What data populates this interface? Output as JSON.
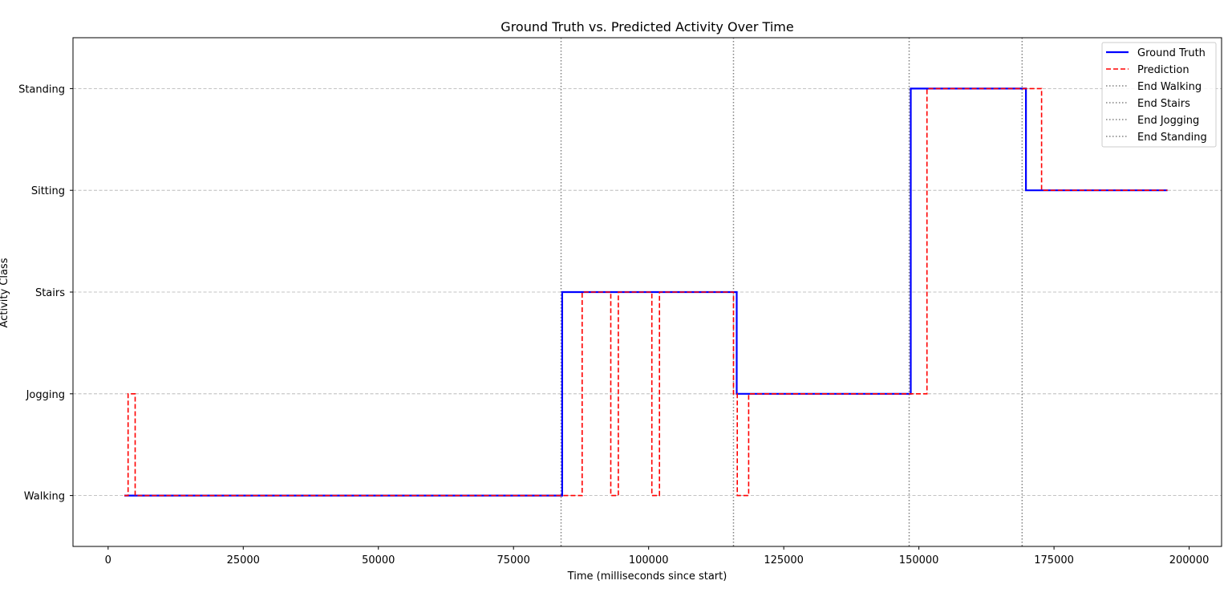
{
  "chart_data": {
    "type": "line",
    "title": "Ground Truth vs. Predicted Activity Over Time",
    "xlabel": "Time (milliseconds since start)",
    "ylabel": "Activity Class",
    "xlim": [
      -6500,
      206000
    ],
    "ylim": [
      -0.5,
      4.5
    ],
    "x_ticks": [
      0,
      25000,
      50000,
      75000,
      100000,
      125000,
      150000,
      175000,
      200000
    ],
    "x_tick_labels": [
      "0",
      "25000",
      "50000",
      "75000",
      "100000",
      "125000",
      "150000",
      "175000",
      "200000"
    ],
    "categories": [
      "Walking",
      "Jogging",
      "Stairs",
      "Sitting",
      "Standing"
    ],
    "grid": "y dashed",
    "legend_position": "top-right",
    "series": [
      {
        "name": "Ground Truth",
        "color": "#0000ff",
        "style": "solid",
        "points": [
          [
            3000,
            0
          ],
          [
            84000,
            0
          ],
          [
            84000,
            2
          ],
          [
            116300,
            2
          ],
          [
            116300,
            1
          ],
          [
            148500,
            1
          ],
          [
            148500,
            4
          ],
          [
            169800,
            4
          ],
          [
            169800,
            3
          ],
          [
            196000,
            3
          ]
        ]
      },
      {
        "name": "Prediction",
        "color": "#ff0000",
        "style": "dashed",
        "points": [
          [
            3000,
            0
          ],
          [
            3700,
            0
          ],
          [
            3700,
            1
          ],
          [
            5000,
            1
          ],
          [
            5000,
            0
          ],
          [
            87700,
            0
          ],
          [
            87700,
            2
          ],
          [
            93000,
            2
          ],
          [
            93000,
            0
          ],
          [
            94400,
            0
          ],
          [
            94400,
            2
          ],
          [
            100600,
            2
          ],
          [
            100600,
            0
          ],
          [
            102000,
            0
          ],
          [
            102000,
            2
          ],
          [
            115700,
            2
          ],
          [
            115700,
            1
          ],
          [
            116400,
            1
          ],
          [
            116400,
            0
          ],
          [
            118500,
            0
          ],
          [
            118500,
            1
          ],
          [
            151500,
            1
          ],
          [
            151500,
            4
          ],
          [
            172700,
            4
          ],
          [
            172700,
            3
          ],
          [
            196000,
            3
          ]
        ]
      }
    ],
    "vlines": [
      {
        "name": "End Walking",
        "x": 83800,
        "color": "#808080"
      },
      {
        "name": "End Stairs",
        "x": 115700,
        "color": "#808080"
      },
      {
        "name": "End Jogging",
        "x": 148200,
        "color": "#808080"
      },
      {
        "name": "End Standing",
        "x": 169100,
        "color": "#808080"
      }
    ]
  }
}
